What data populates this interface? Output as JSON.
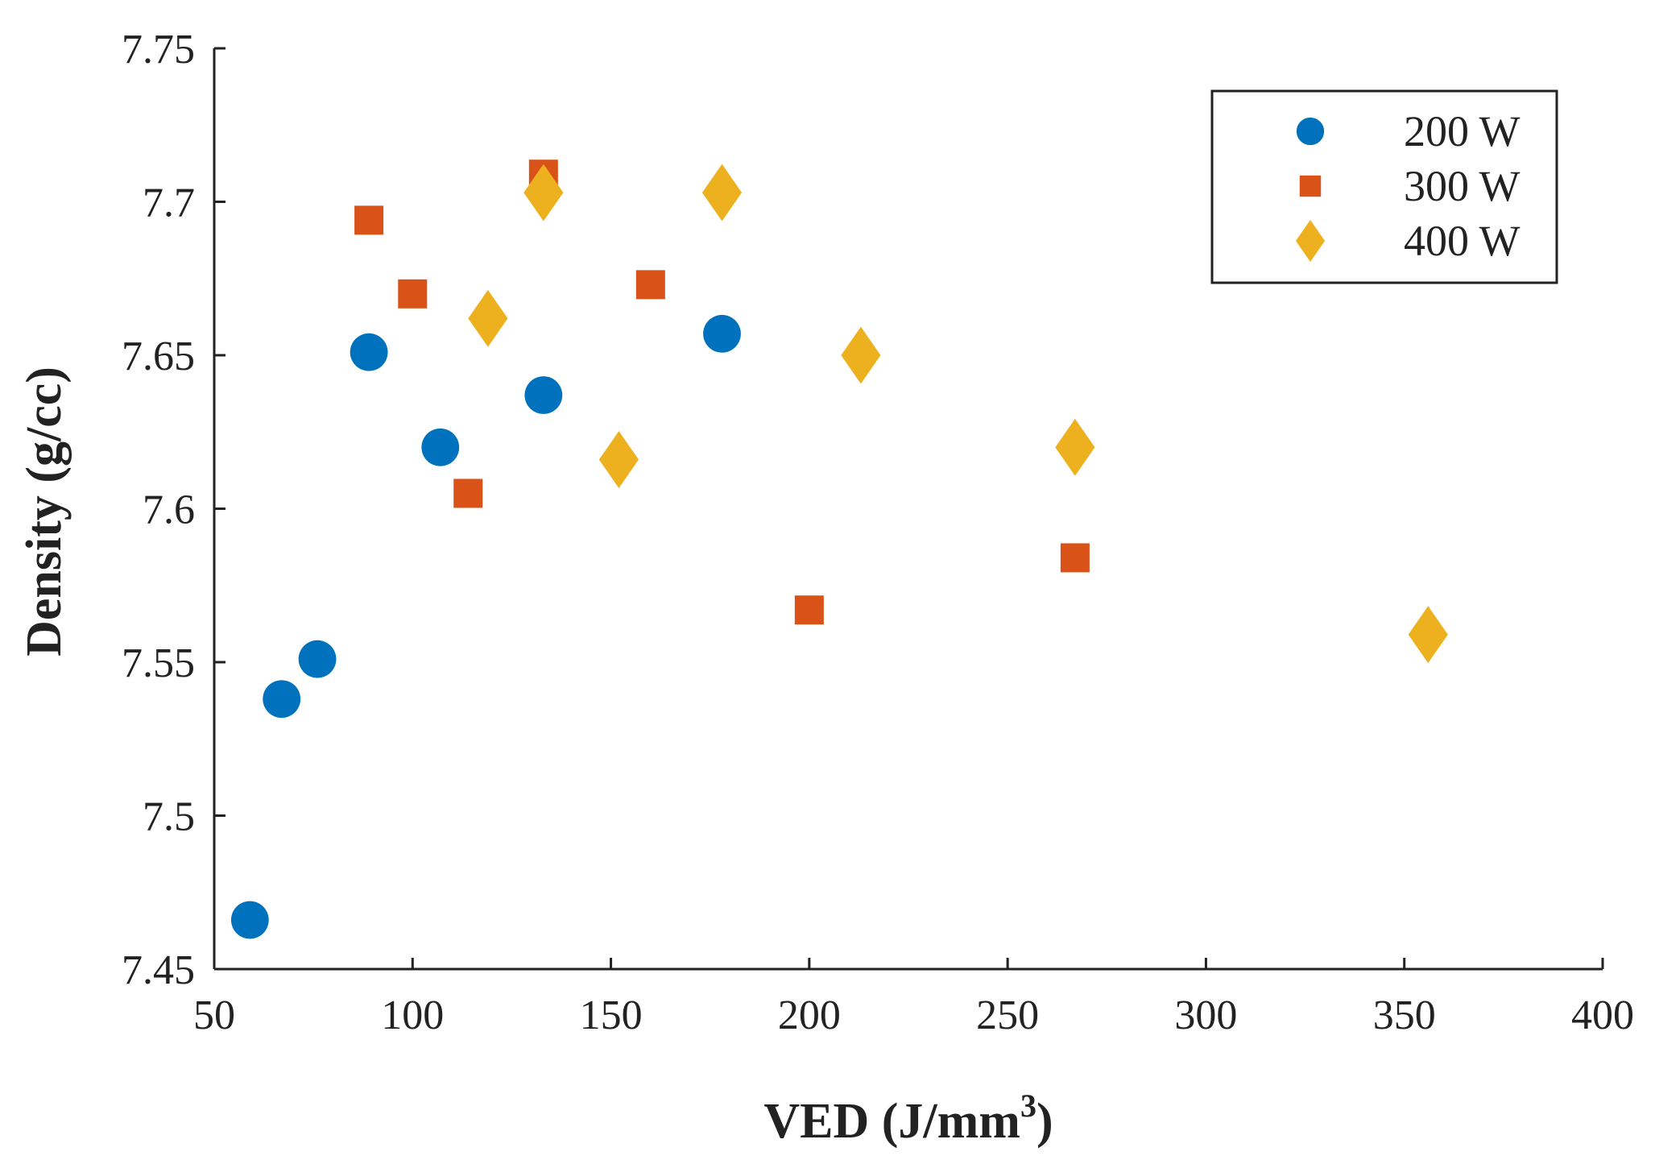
{
  "chart_data": {
    "type": "scatter",
    "title": "",
    "xlabel": "VED (J/mm",
    "xlabel_sup": "3",
    "xlabel_suffix": ")",
    "ylabel": "Density (g/cc)",
    "xlim": [
      50,
      400
    ],
    "ylim": [
      7.45,
      7.75
    ],
    "xticks": [
      50,
      100,
      150,
      200,
      250,
      300,
      350,
      400
    ],
    "xtick_labels": [
      "50",
      "100",
      "150",
      "200",
      "250",
      "300",
      "350",
      "400"
    ],
    "yticks": [
      7.45,
      7.5,
      7.55,
      7.6,
      7.65,
      7.7,
      7.75
    ],
    "ytick_labels": [
      "7.45",
      "7.5",
      "7.55",
      "7.6",
      "7.65",
      "7.7",
      "7.75"
    ],
    "grid": false,
    "legend_position": "top-right",
    "series": [
      {
        "name": "200 W",
        "marker": "circle",
        "color": "#0072BD",
        "points": [
          {
            "x": 59,
            "y": 7.466
          },
          {
            "x": 67,
            "y": 7.538
          },
          {
            "x": 76,
            "y": 7.551
          },
          {
            "x": 89,
            "y": 7.651
          },
          {
            "x": 107,
            "y": 7.62
          },
          {
            "x": 133,
            "y": 7.637
          },
          {
            "x": 178,
            "y": 7.657
          }
        ]
      },
      {
        "name": "300 W",
        "marker": "square",
        "color": "#D95319",
        "points": [
          {
            "x": 89,
            "y": 7.694
          },
          {
            "x": 100,
            "y": 7.67
          },
          {
            "x": 114,
            "y": 7.605
          },
          {
            "x": 133,
            "y": 7.709
          },
          {
            "x": 160,
            "y": 7.673
          },
          {
            "x": 200,
            "y": 7.567
          },
          {
            "x": 267,
            "y": 7.584
          }
        ]
      },
      {
        "name": "400 W",
        "marker": "diamond",
        "color": "#EDB120",
        "points": [
          {
            "x": 119,
            "y": 7.662
          },
          {
            "x": 133,
            "y": 7.703
          },
          {
            "x": 152,
            "y": 7.616
          },
          {
            "x": 178,
            "y": 7.703
          },
          {
            "x": 213,
            "y": 7.65
          },
          {
            "x": 267,
            "y": 7.62
          },
          {
            "x": 356,
            "y": 7.559
          }
        ]
      }
    ]
  }
}
